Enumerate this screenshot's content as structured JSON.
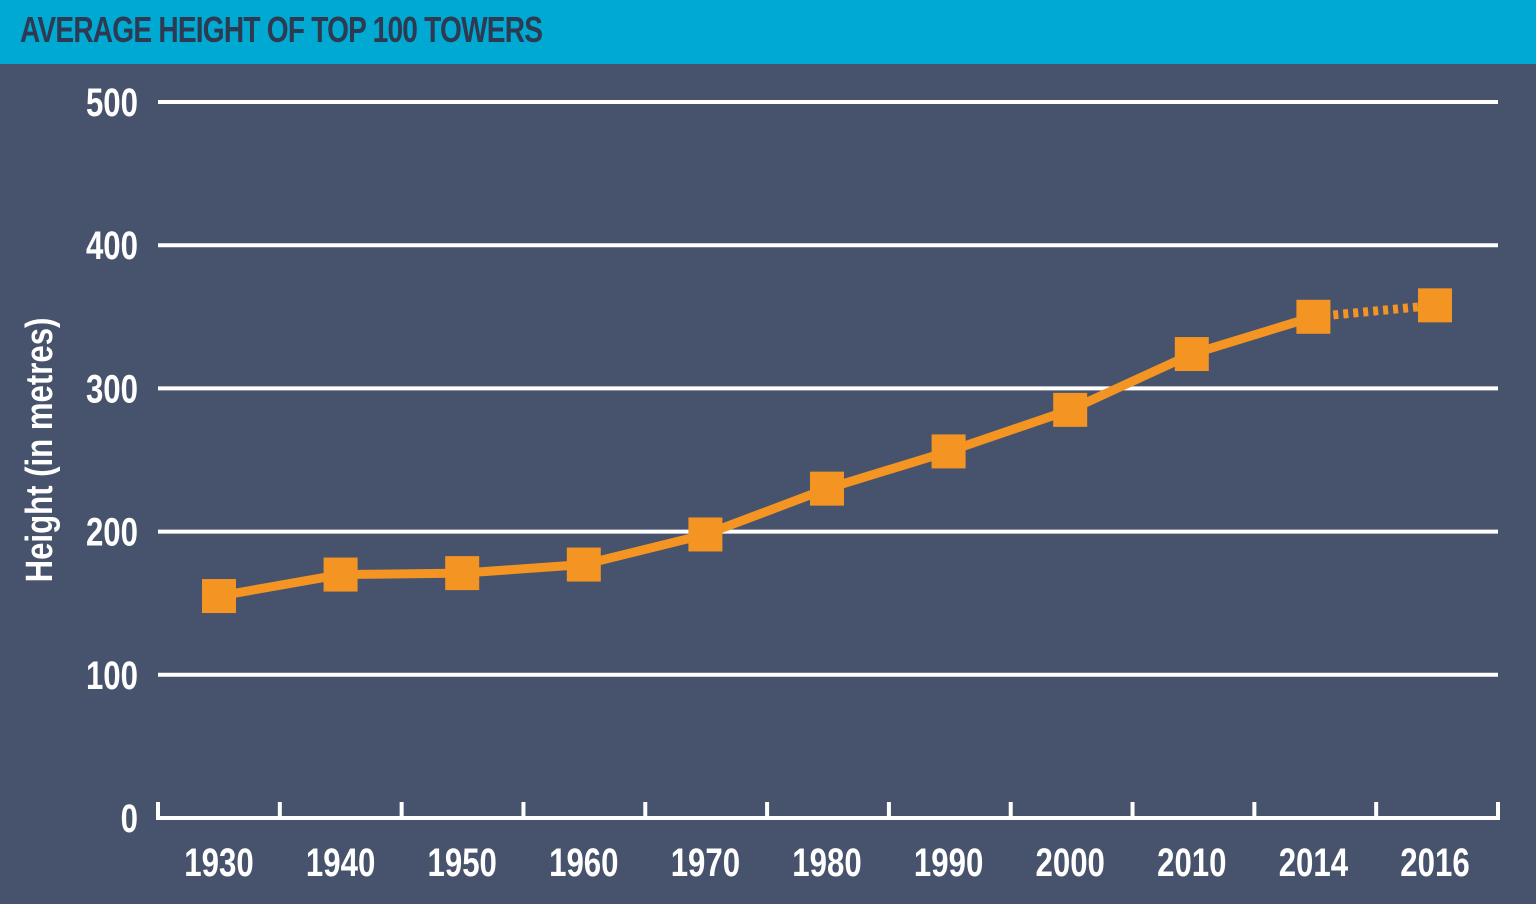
{
  "chart_data": {
    "type": "line",
    "title": "AVERAGE HEIGHT OF TOP 100 TOWERS",
    "xlabel": "",
    "ylabel": "Height (in metres)",
    "categories": [
      "1930",
      "1940",
      "1950",
      "1960",
      "1970",
      "1980",
      "1990",
      "2000",
      "2010",
      "2014",
      "2016"
    ],
    "series": [
      {
        "values": [
          155,
          170,
          171,
          177,
          198,
          230,
          256,
          285,
          324,
          350,
          358
        ],
        "projected_from_index": 9
      }
    ],
    "ylim": [
      0,
      500
    ],
    "yticks": [
      0,
      100,
      200,
      300,
      400,
      500
    ],
    "grid": true,
    "legend": "none",
    "colors": {
      "background": "#47536c",
      "header": "#00a9d1",
      "title_text": "#2d3a52",
      "line": "#f39423",
      "grid": "#ffffff",
      "text": "#ffffff"
    }
  }
}
